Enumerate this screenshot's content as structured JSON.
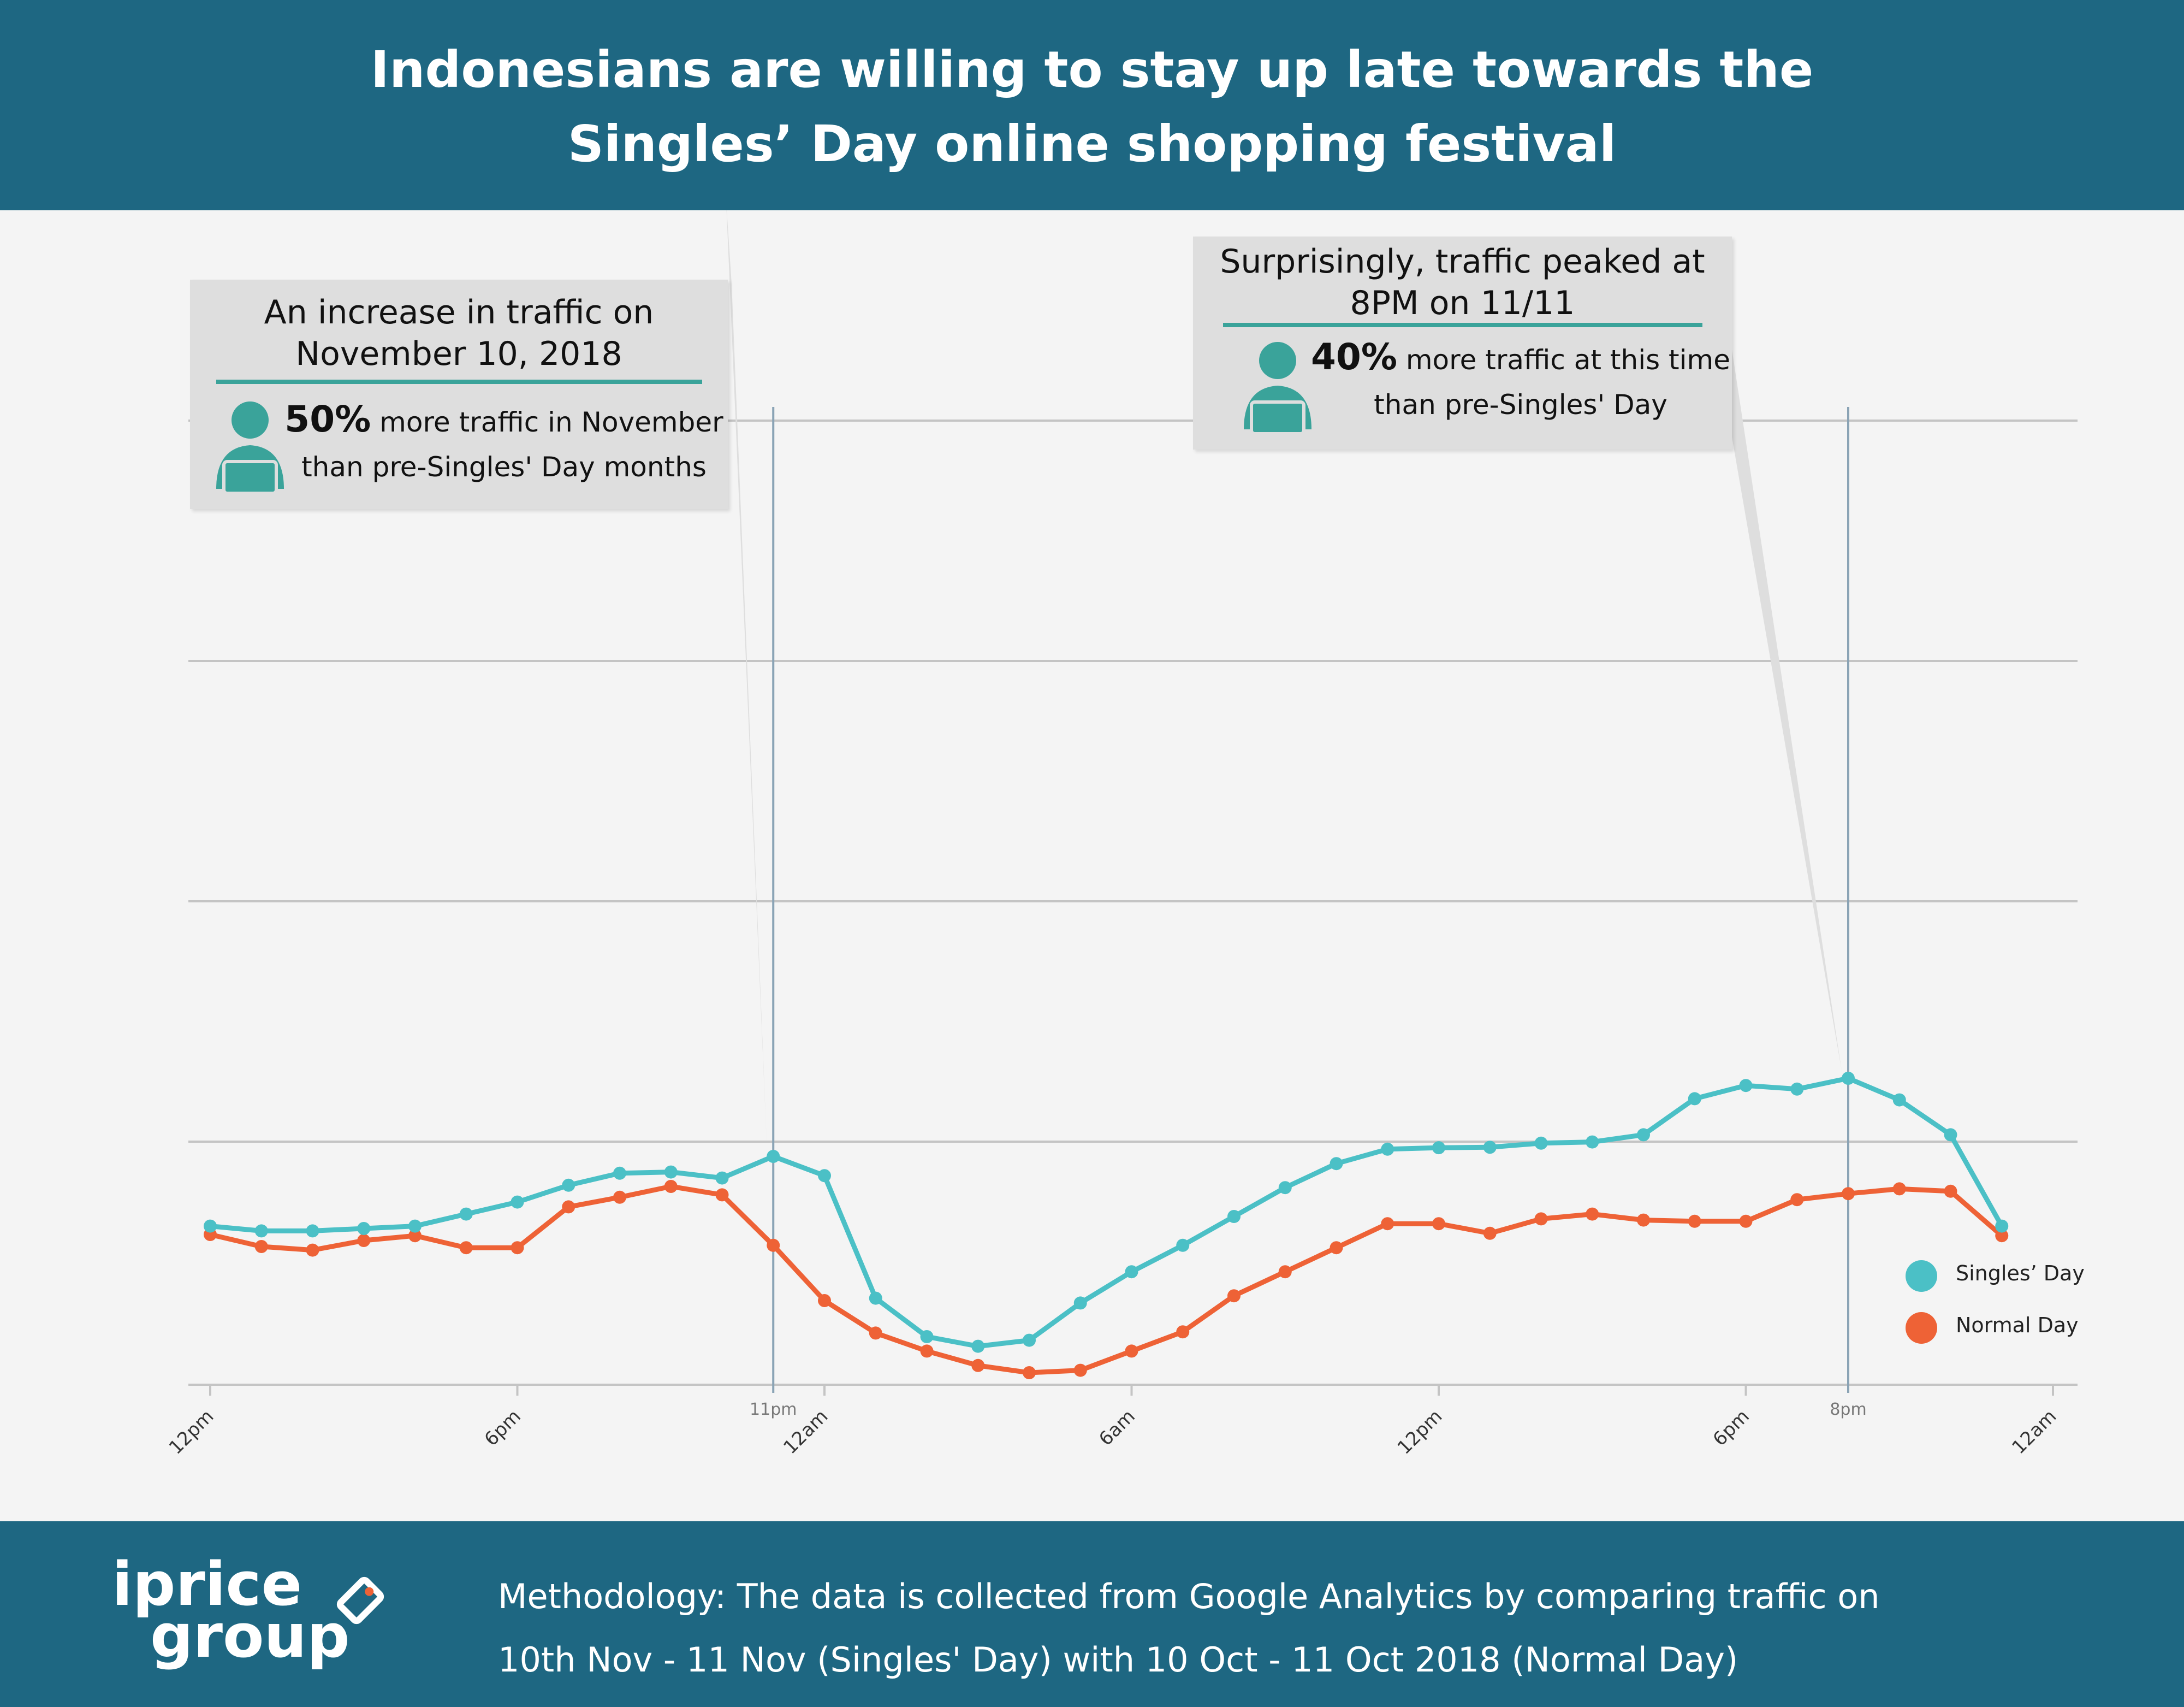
{
  "header": {
    "title_line1": "Indonesians are willing to stay up late towards the",
    "title_line2": "Singles’ Day online shopping festival"
  },
  "callouts": [
    {
      "title_line1": "An increase in traffic on",
      "title_line2": "November 10, 2018",
      "pct": "50%",
      "text_line1": " more traffic in November",
      "text_line2": "than pre-Singles' Day months",
      "icon": "person-laptop-icon"
    },
    {
      "title_line1": "Surprisingly, traffic peaked at",
      "title_line2": "8PM on 11/11",
      "pct": "40%",
      "text_line1": " more traffic at this time",
      "text_line2": "than pre-Singles' Day",
      "icon": "person-laptop-icon"
    }
  ],
  "legend": {
    "singles": "Singles’ Day",
    "normal": "Normal Day"
  },
  "colors": {
    "singles": "#4bc0c6",
    "normal": "#ee6236",
    "header": "#1e6782",
    "accent": "#3aa39a"
  },
  "chart_data": {
    "type": "line",
    "x_ticks": [
      "12pm",
      "6pm",
      "12am",
      "6am",
      "12pm",
      "6pm",
      "12am"
    ],
    "marker_labels": [
      "11pm",
      "8pm"
    ],
    "y_axis_labels_shown": false,
    "grid": "horizontal",
    "legend_position": "bottom-right",
    "x": [
      "12pm",
      "1pm",
      "2pm",
      "3pm",
      "4pm",
      "5pm",
      "6pm",
      "7pm",
      "8pm",
      "9pm",
      "10pm",
      "11pm",
      "12am",
      "1am",
      "2am",
      "3am",
      "4am",
      "5am",
      "6am",
      "7am",
      "8am",
      "9am",
      "10am",
      "11am",
      "12pm",
      "1pm",
      "2pm",
      "3pm",
      "4pm",
      "5pm",
      "6pm",
      "7pm",
      "8pm",
      "9pm",
      "10pm",
      "11pm"
    ],
    "series": [
      {
        "name": "Singles’ Day",
        "values": [
          66,
          64,
          64,
          65,
          66,
          71,
          76,
          83,
          88,
          88.5,
          86,
          95,
          87,
          36,
          20,
          16,
          18.5,
          34,
          47,
          58,
          70,
          82,
          92,
          98,
          98.6,
          98.8,
          100.5,
          101,
          104,
          119,
          124.5,
          123,
          127.5,
          118.5,
          104,
          66
        ]
      },
      {
        "name": "Normal Day",
        "values": [
          62.5,
          57.5,
          56,
          60,
          62,
          57,
          57,
          74,
          78,
          82.5,
          79,
          58,
          35,
          21.5,
          14,
          8,
          5,
          6,
          14,
          22,
          37,
          47,
          57,
          67,
          67,
          63,
          69,
          71,
          68.5,
          68,
          68,
          77,
          79.5,
          81.5,
          80.5,
          62
        ]
      }
    ]
  },
  "footer": {
    "logo_line1": "iprice",
    "logo_line2": "group",
    "method_line1": "Methodology: The data is collected from Google Analytics by comparing traffic on",
    "method_line2": "10th Nov - 11 Nov (Singles' Day) with 10 Oct - 11 Oct 2018 (Normal Day)"
  }
}
